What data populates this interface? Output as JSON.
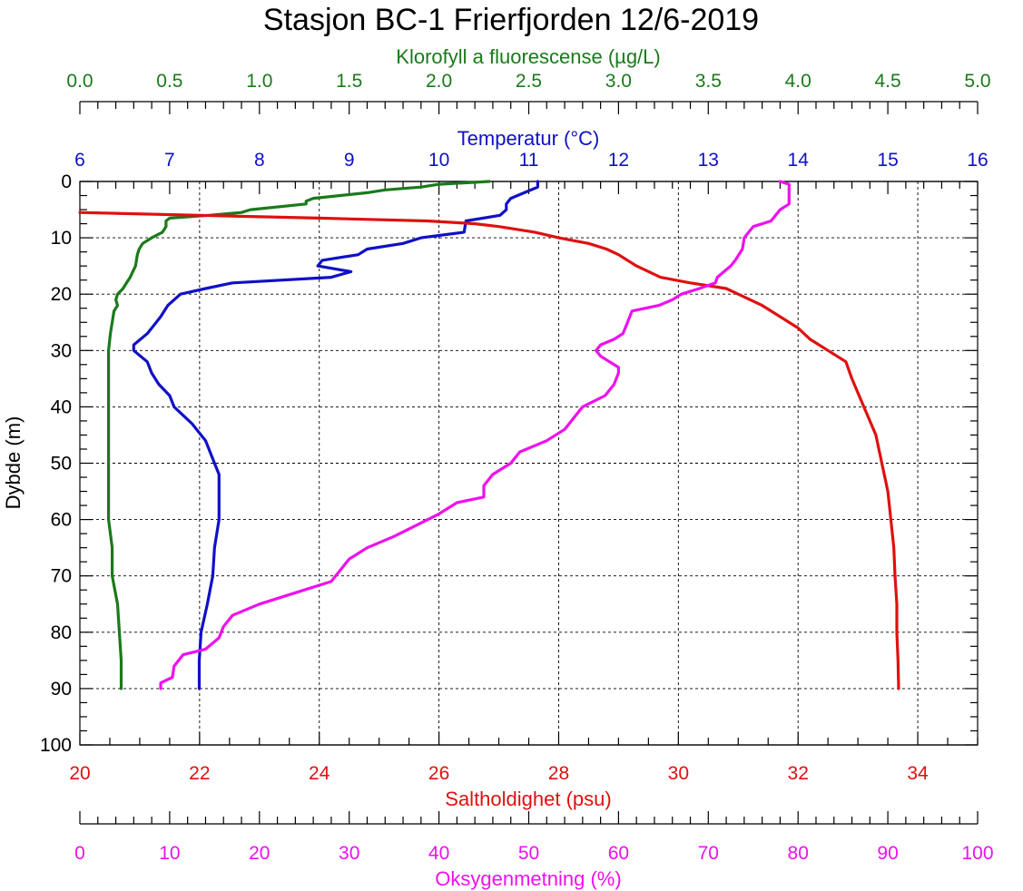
{
  "chart_data": {
    "type": "line",
    "title": "Stasjon BC-1 Frierfjorden 12/6-2019",
    "grid": true,
    "y_axis": {
      "label": "Dybde (m)",
      "range": [
        0,
        100
      ],
      "inverted": true,
      "ticks": [
        0,
        10,
        20,
        30,
        40,
        50,
        60,
        70,
        80,
        90,
        100
      ],
      "tick_labels": [
        "0",
        "10",
        "20",
        "30",
        "40",
        "50",
        "60",
        "70",
        "80",
        "90",
        "100"
      ]
    },
    "x_axes": [
      {
        "key": "chl",
        "label": "Klorofyll a fluorescense (µg/L)",
        "color": "#1a7a1a",
        "range": [
          0,
          5
        ],
        "tick_labels": [
          "0.0",
          "0.5",
          "1.0",
          "1.5",
          "2.0",
          "2.5",
          "3.0",
          "3.5",
          "4.0",
          "4.5",
          "5.0"
        ]
      },
      {
        "key": "temp",
        "label": "Temperatur (°C)",
        "color": "#1010c8",
        "range": [
          6,
          16
        ],
        "tick_labels": [
          "6",
          "7",
          "8",
          "9",
          "10",
          "11",
          "12",
          "13",
          "14",
          "15",
          "16"
        ]
      },
      {
        "key": "sal",
        "label": "Saltholdighet (psu)",
        "color": "#e01010",
        "range": [
          20,
          35
        ],
        "tick_labels": [
          "20",
          "22",
          "24",
          "26",
          "28",
          "30",
          "32",
          "34"
        ]
      },
      {
        "key": "oxy",
        "label": "Oksygenmetning (%)",
        "color": "#ee10ee",
        "range": [
          0,
          100
        ],
        "tick_labels": [
          "0",
          "10",
          "20",
          "30",
          "40",
          "50",
          "60",
          "70",
          "80",
          "90",
          "100"
        ]
      }
    ],
    "series": [
      {
        "key": "chl",
        "name": "Klorofyll a fluorescense (µg/L)",
        "color": "#1a7a1a",
        "points": [
          [
            0,
            2.28
          ],
          [
            0.5,
            2.0
          ],
          [
            1,
            1.9
          ],
          [
            1.5,
            1.7
          ],
          [
            2,
            1.6
          ],
          [
            3,
            1.3
          ],
          [
            3.5,
            1.26
          ],
          [
            4,
            1.26
          ],
          [
            5,
            0.95
          ],
          [
            5.5,
            0.9
          ],
          [
            6,
            0.72
          ],
          [
            6.5,
            0.5
          ],
          [
            7,
            0.48
          ],
          [
            8,
            0.48
          ],
          [
            9,
            0.46
          ],
          [
            10,
            0.4
          ],
          [
            11,
            0.35
          ],
          [
            12,
            0.33
          ],
          [
            13,
            0.32
          ],
          [
            15,
            0.31
          ],
          [
            17,
            0.28
          ],
          [
            18,
            0.26
          ],
          [
            19,
            0.24
          ],
          [
            20,
            0.21
          ],
          [
            21,
            0.2
          ],
          [
            22,
            0.21
          ],
          [
            23,
            0.19
          ],
          [
            25,
            0.18
          ],
          [
            27,
            0.17
          ],
          [
            30,
            0.16
          ],
          [
            40,
            0.16
          ],
          [
            50,
            0.16
          ],
          [
            60,
            0.16
          ],
          [
            65,
            0.18
          ],
          [
            70,
            0.18
          ],
          [
            75,
            0.21
          ],
          [
            80,
            0.22
          ],
          [
            85,
            0.23
          ],
          [
            90,
            0.23
          ]
        ]
      },
      {
        "key": "temp",
        "name": "Temperatur (°C)",
        "color": "#1010c8",
        "points": [
          [
            0,
            11.1
          ],
          [
            1,
            11.1
          ],
          [
            2,
            10.95
          ],
          [
            3,
            10.8
          ],
          [
            4,
            10.75
          ],
          [
            5,
            10.75
          ],
          [
            6,
            10.68
          ],
          [
            7,
            10.3
          ],
          [
            9,
            10.28
          ],
          [
            10,
            9.8
          ],
          [
            11,
            9.6
          ],
          [
            12,
            9.2
          ],
          [
            13,
            9.1
          ],
          [
            14,
            8.7
          ],
          [
            15,
            8.65
          ],
          [
            16,
            9.02
          ],
          [
            17,
            8.8
          ],
          [
            18,
            7.7
          ],
          [
            19,
            7.4
          ],
          [
            20,
            7.12
          ],
          [
            21,
            7.05
          ],
          [
            22,
            6.98
          ],
          [
            24,
            6.9
          ],
          [
            25,
            6.85
          ],
          [
            27,
            6.75
          ],
          [
            29,
            6.6
          ],
          [
            30,
            6.6
          ],
          [
            32,
            6.75
          ],
          [
            34,
            6.8
          ],
          [
            36,
            6.88
          ],
          [
            38,
            7.0
          ],
          [
            40,
            7.05
          ],
          [
            43,
            7.25
          ],
          [
            46,
            7.4
          ],
          [
            50,
            7.5
          ],
          [
            52,
            7.55
          ],
          [
            55,
            7.55
          ],
          [
            60,
            7.55
          ],
          [
            65,
            7.5
          ],
          [
            70,
            7.48
          ],
          [
            75,
            7.42
          ],
          [
            80,
            7.35
          ],
          [
            85,
            7.33
          ],
          [
            90,
            7.33
          ]
        ]
      },
      {
        "key": "sal",
        "name": "Saltholdighet (psu)",
        "color": "#e01010",
        "points": [
          [
            5.5,
            20.0
          ],
          [
            6,
            22.0
          ],
          [
            6.5,
            24.0
          ],
          [
            7,
            25.8
          ],
          [
            7.5,
            26.6
          ],
          [
            8,
            27.0
          ],
          [
            9,
            27.6
          ],
          [
            10,
            28.0
          ],
          [
            11,
            28.5
          ],
          [
            12,
            28.8
          ],
          [
            13,
            29.0
          ],
          [
            15,
            29.3
          ],
          [
            17,
            29.7
          ],
          [
            18,
            30.2
          ],
          [
            19,
            30.8
          ],
          [
            20,
            31.0
          ],
          [
            22,
            31.4
          ],
          [
            24,
            31.7
          ],
          [
            26,
            32.0
          ],
          [
            28,
            32.2
          ],
          [
            30,
            32.5
          ],
          [
            32,
            32.8
          ],
          [
            35,
            32.9
          ],
          [
            40,
            33.1
          ],
          [
            45,
            33.3
          ],
          [
            50,
            33.4
          ],
          [
            55,
            33.5
          ],
          [
            60,
            33.55
          ],
          [
            65,
            33.6
          ],
          [
            70,
            33.62
          ],
          [
            75,
            33.65
          ],
          [
            80,
            33.65
          ],
          [
            85,
            33.67
          ],
          [
            90,
            33.68
          ]
        ]
      },
      {
        "key": "oxy",
        "name": "Oksygenmetning (%)",
        "color": "#ee10ee",
        "points": [
          [
            0,
            78.0
          ],
          [
            0.5,
            79.0
          ],
          [
            2,
            79.0
          ],
          [
            4,
            79.0
          ],
          [
            5,
            78.0
          ],
          [
            6,
            77.5
          ],
          [
            7,
            77.0
          ],
          [
            8,
            75.0
          ],
          [
            9,
            74.5
          ],
          [
            10,
            74.0
          ],
          [
            12,
            73.8
          ],
          [
            14,
            73.0
          ],
          [
            15,
            72.5
          ],
          [
            17,
            71.0
          ],
          [
            18,
            70.8
          ],
          [
            19,
            69.0
          ],
          [
            20,
            67.0
          ],
          [
            21,
            66.0
          ],
          [
            22,
            64.5
          ],
          [
            23,
            61.5
          ],
          [
            25,
            61.0
          ],
          [
            27,
            60.5
          ],
          [
            28,
            59.5
          ],
          [
            29,
            58.0
          ],
          [
            30,
            57.5
          ],
          [
            31,
            58.0
          ],
          [
            32,
            59.0
          ],
          [
            33,
            60.0
          ],
          [
            34,
            60.0
          ],
          [
            36,
            59.5
          ],
          [
            38,
            58.5
          ],
          [
            40,
            56.0
          ],
          [
            42,
            55.0
          ],
          [
            44,
            54.0
          ],
          [
            46,
            52.0
          ],
          [
            48,
            49.0
          ],
          [
            50,
            48.0
          ],
          [
            52,
            46.0
          ],
          [
            54,
            45.0
          ],
          [
            56,
            45.0
          ],
          [
            57,
            42.0
          ],
          [
            59,
            40.0
          ],
          [
            61,
            37.5
          ],
          [
            63,
            35.0
          ],
          [
            65,
            32.0
          ],
          [
            67,
            30.0
          ],
          [
            69,
            29.0
          ],
          [
            71,
            28.0
          ],
          [
            73,
            24.0
          ],
          [
            75,
            20.0
          ],
          [
            77,
            17.0
          ],
          [
            79,
            16.0
          ],
          [
            81,
            15.5
          ],
          [
            83,
            14.0
          ],
          [
            84,
            11.5
          ],
          [
            86,
            10.5
          ],
          [
            88,
            10.3
          ],
          [
            89,
            9.0
          ],
          [
            90,
            9.0
          ]
        ]
      }
    ]
  }
}
